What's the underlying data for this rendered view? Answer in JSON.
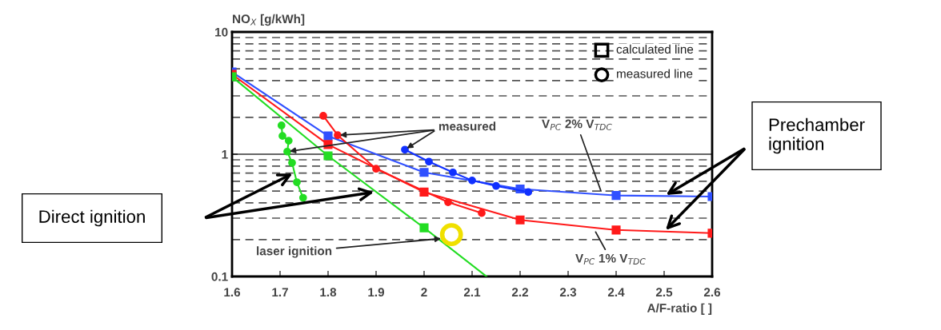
{
  "chart_data": {
    "type": "line",
    "xlabel": "A/F-ratio [ ]",
    "ylabel": "NO$_{X}$ [g/kWh]",
    "xlim": [
      1.6,
      2.6
    ],
    "xticks": [
      1.6,
      1.7,
      1.8,
      1.9,
      2,
      2.1,
      2.2,
      2.3,
      2.4,
      2.5,
      2.6
    ],
    "ylim": [
      0.1,
      10
    ],
    "yticks": [
      0.1,
      1,
      10
    ],
    "log": "y",
    "grid": "y",
    "series": [
      {
        "color": "#3050ff",
        "marker": "square",
        "x": [
          1.6,
          1.8,
          2.0,
          2.2,
          2.4,
          2.6
        ],
        "values": [
          4.7,
          1.41,
          0.71,
          0.52,
          0.46,
          0.45
        ]
      },
      {
        "color": "#ff1a1a",
        "marker": "square",
        "x": [
          1.6,
          1.8,
          2.0,
          2.2,
          2.4,
          2.6
        ],
        "values": [
          4.5,
          1.2,
          0.49,
          0.29,
          0.24,
          0.226
        ]
      },
      {
        "color": "#22dd22",
        "marker": "square",
        "x": [
          1.6,
          1.8,
          2.0
        ],
        "values": [
          4.3,
          0.97,
          0.25
        ]
      },
      {
        "color": "#22dd22",
        "marker": "none",
        "x": [
          2.0,
          2.13
        ],
        "values": [
          0.25,
          0.1
        ]
      },
      {
        "color": "#1030ff",
        "marker": "circle",
        "x": [
          1.96,
          2.01,
          2.06,
          2.1,
          2.15,
          2.217
        ],
        "values": [
          1.09,
          0.87,
          0.71,
          0.61,
          0.55,
          0.49
        ]
      },
      {
        "color": "#ff1a1a",
        "marker": "circle",
        "x": [
          1.79,
          1.82,
          1.9,
          2.05,
          2.12
        ],
        "values": [
          2.06,
          1.43,
          0.76,
          0.405,
          0.33
        ]
      },
      {
        "color": "#22dd22",
        "marker": "circle",
        "x": [
          1.703,
          1.705,
          1.718,
          1.715,
          1.725,
          1.735,
          1.748
        ],
        "values": [
          1.72,
          1.41,
          1.29,
          1.05,
          0.85,
          0.59,
          0.44
        ]
      },
      {
        "type": "scatter",
        "color": "#f0e000",
        "marker": "circle",
        "x": [
          2.057
        ],
        "values": [
          0.22
        ]
      }
    ],
    "annotations": [
      {
        "text": "measured",
        "x": 1.96,
        "y": 1.09
      },
      {
        "text": "V$_{PC}$ 2% V$_{TDC}$",
        "x": 2.37,
        "y": 0.48
      },
      {
        "text": "V$_{PC}$ 1% V$_{TDC}$",
        "x": 2.355,
        "y": 0.24
      },
      {
        "text": "laser ignition",
        "x": 2.04,
        "y": 0.205
      },
      "Direct ignition",
      "Prechamber\nignition",
      "calculated line",
      "measured line"
    ]
  }
}
